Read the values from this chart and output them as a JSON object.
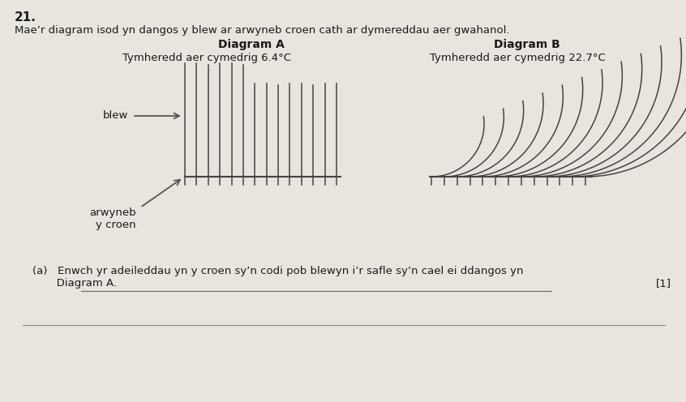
{
  "bg_color": "#e8e4de",
  "title_number": "21.",
  "intro_line1": "Mae’r diagram isod yn dangos y blew ar arwyneb croen cath ar dymereddau aer gwahanol.",
  "diag_a_title": "Diagram A",
  "diag_b_title": "Diagram B",
  "diag_a_temp": "Tymheredd aer cymedrig 6.4°C",
  "diag_b_temp": "Tymheredd aer cymedrig 22.7°C",
  "label_blew": "blew",
  "label_arwyneb": "arwyneb\ny croen",
  "question_line1": "(a)   Enwch yr adeileddau yn y croen sy’n codi pob blewyn i’r safle sy’n cael ei ddangos yn",
  "question_line2": "       Diagram A.",
  "question_mark": "[1]",
  "text_color": "#1a1a1a",
  "line_color": "#444444",
  "arrow_color": "#555555"
}
